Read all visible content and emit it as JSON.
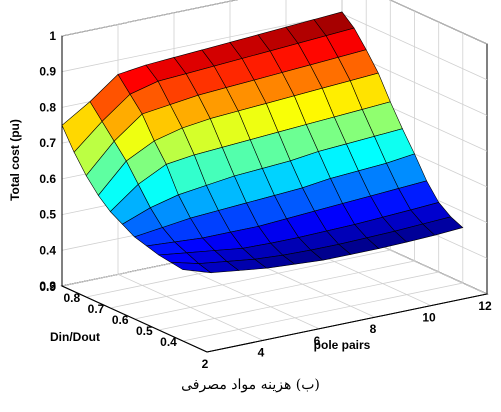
{
  "caption": "(ب) هزینه مواد مصرفی",
  "chart_data": {
    "type": "surface",
    "title": "",
    "xlabel": "pole pairs",
    "ylabel": "Din/Dout",
    "zlabel": "Total cost (pu)",
    "colormap": "jet",
    "grid": true,
    "xlim": [
      2,
      12
    ],
    "ylim": [
      0.3,
      0.9
    ],
    "zlim": [
      0.3,
      1.0
    ],
    "x_ticks": [
      2,
      4,
      6,
      8,
      10,
      12
    ],
    "y_ticks": [
      0.4,
      0.5,
      0.6,
      0.7,
      0.8,
      0.9
    ],
    "z_ticks": [
      0.3,
      0.4,
      0.5,
      0.6,
      0.7,
      0.8,
      0.9,
      1
    ],
    "x": [
      2,
      3,
      4,
      5,
      6,
      7,
      8,
      9,
      10,
      11,
      12
    ],
    "y": [
      0.4,
      0.45,
      0.5,
      0.55,
      0.6,
      0.65,
      0.7,
      0.75,
      0.8,
      0.85,
      0.9
    ],
    "z": [
      [
        0.5,
        0.475,
        0.465,
        0.455,
        0.45,
        0.445,
        0.445,
        0.445,
        0.447,
        0.45,
        0.455
      ],
      [
        0.505,
        0.485,
        0.475,
        0.465,
        0.46,
        0.458,
        0.458,
        0.46,
        0.462,
        0.466,
        0.47
      ],
      [
        0.51,
        0.5,
        0.49,
        0.48,
        0.478,
        0.478,
        0.48,
        0.482,
        0.486,
        0.49,
        0.495
      ],
      [
        0.52,
        0.515,
        0.51,
        0.51,
        0.51,
        0.515,
        0.52,
        0.525,
        0.53,
        0.535,
        0.54
      ],
      [
        0.53,
        0.54,
        0.55,
        0.555,
        0.56,
        0.565,
        0.57,
        0.58,
        0.585,
        0.59,
        0.6
      ],
      [
        0.55,
        0.58,
        0.6,
        0.61,
        0.62,
        0.625,
        0.63,
        0.64,
        0.645,
        0.65,
        0.655
      ],
      [
        0.57,
        0.63,
        0.67,
        0.68,
        0.685,
        0.69,
        0.695,
        0.7,
        0.705,
        0.71,
        0.715
      ],
      [
        0.6,
        0.68,
        0.72,
        0.74,
        0.75,
        0.755,
        0.76,
        0.765,
        0.77,
        0.775,
        0.78
      ],
      [
        0.64,
        0.72,
        0.78,
        0.79,
        0.8,
        0.805,
        0.81,
        0.815,
        0.82,
        0.825,
        0.83
      ],
      [
        0.69,
        0.76,
        0.82,
        0.84,
        0.845,
        0.85,
        0.855,
        0.86,
        0.865,
        0.87,
        0.875
      ],
      [
        0.75,
        0.8,
        0.86,
        0.87,
        0.875,
        0.88,
        0.885,
        0.89,
        0.895,
        0.9,
        0.905
      ]
    ]
  }
}
